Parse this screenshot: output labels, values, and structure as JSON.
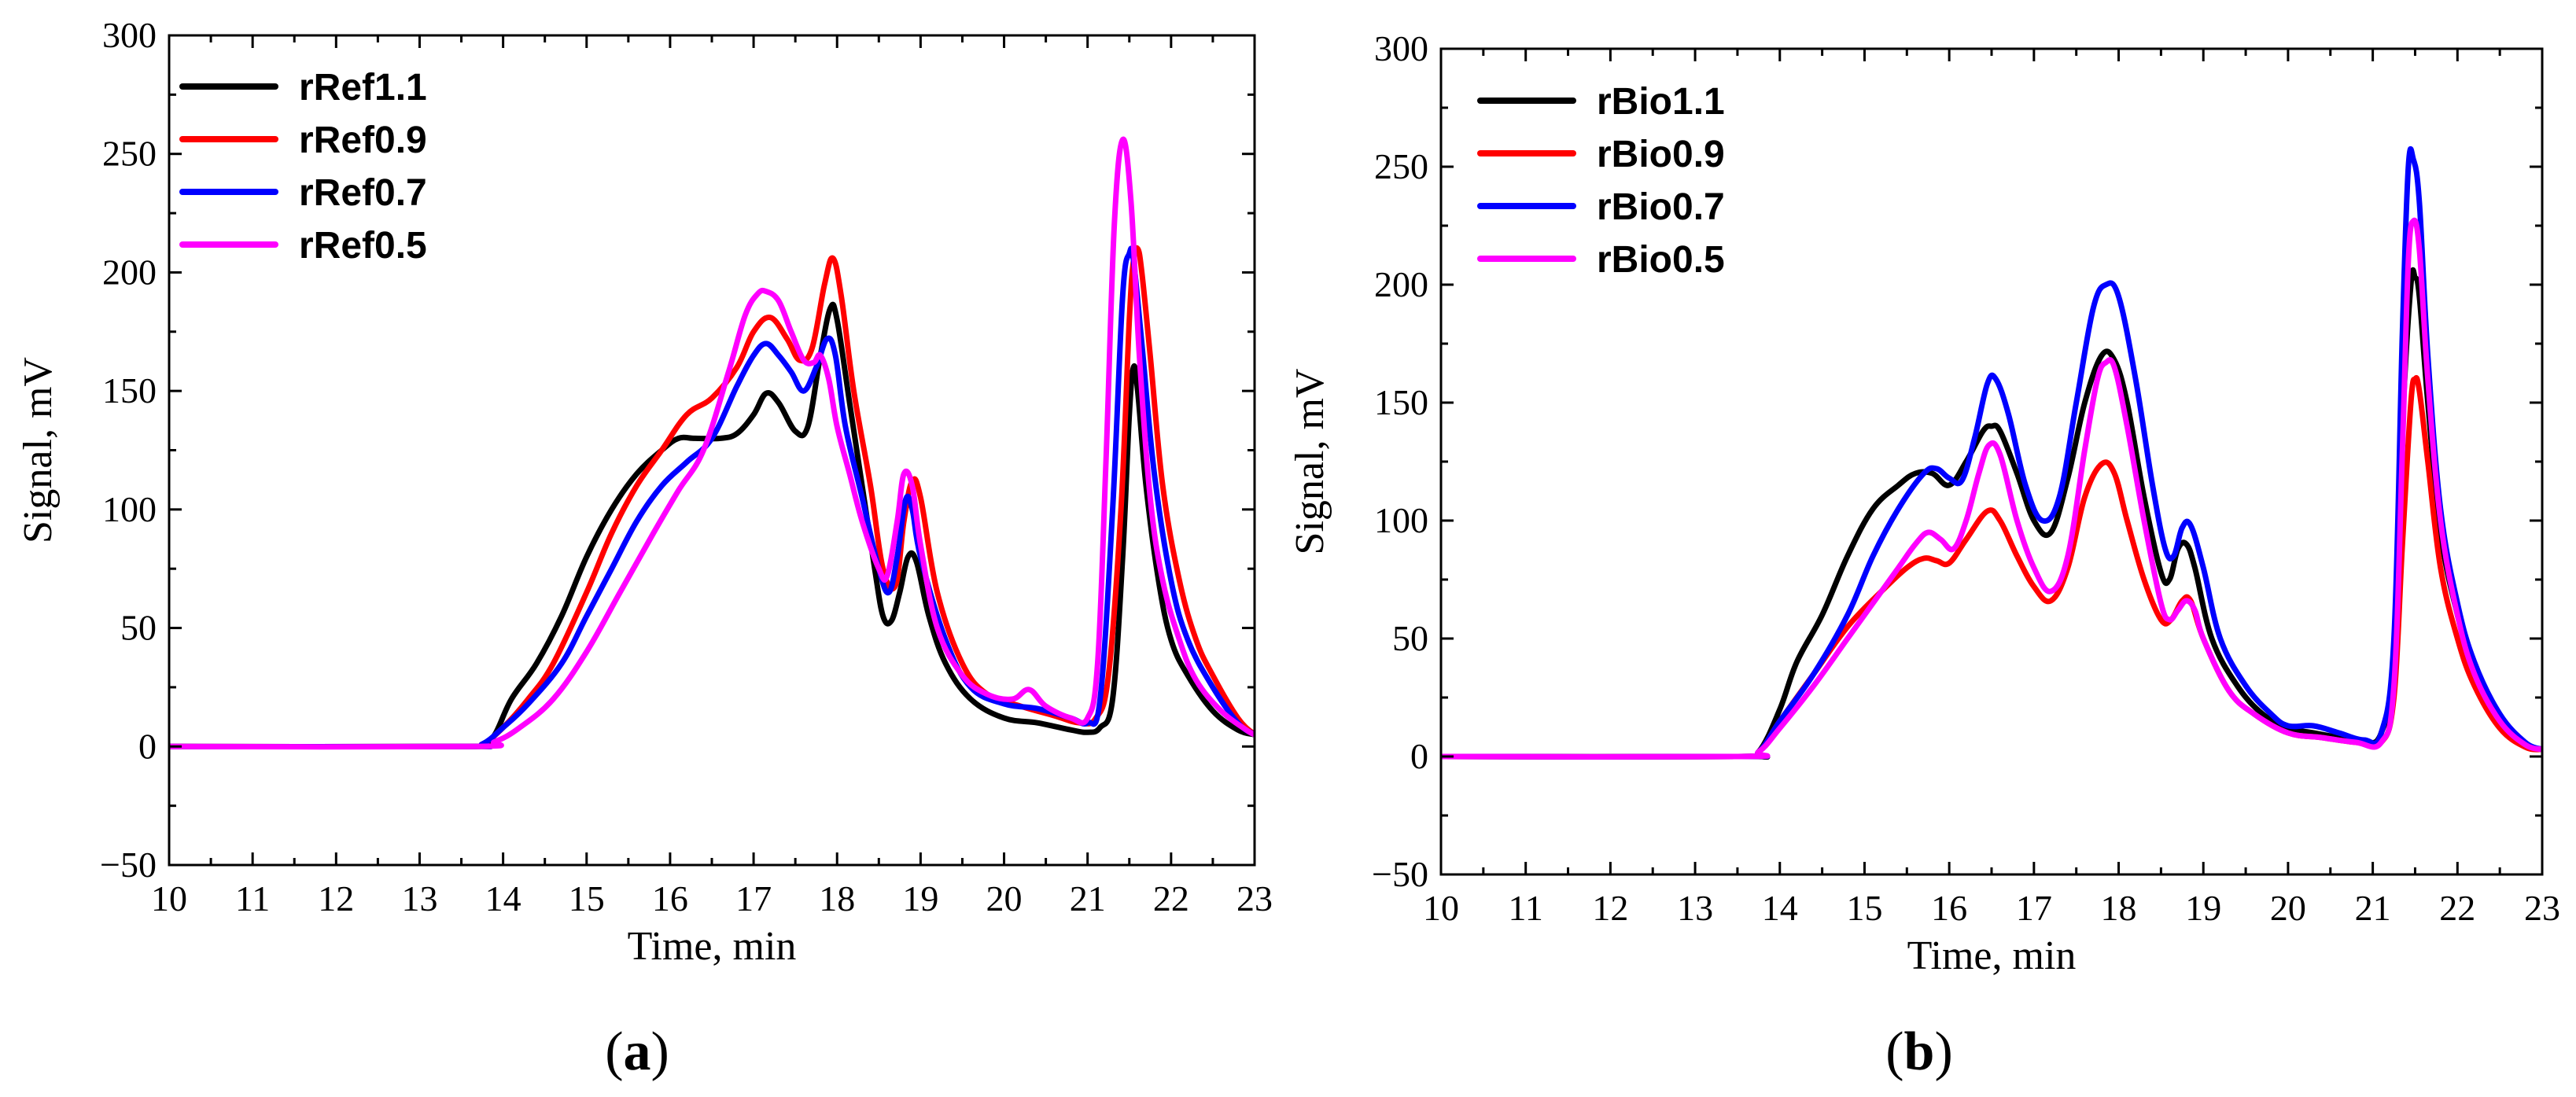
{
  "chart_data": [
    {
      "type": "line",
      "panel_label": "(a)",
      "panel_letter": "a",
      "xlabel": "Time, min",
      "ylabel": "Signal, mV",
      "xlim": [
        10,
        23
      ],
      "ylim": [
        -50,
        300
      ],
      "xticks": [
        10,
        11,
        12,
        13,
        14,
        15,
        16,
        17,
        18,
        19,
        20,
        21,
        22,
        23
      ],
      "yticks": [
        -50,
        0,
        50,
        100,
        150,
        200,
        250,
        300
      ],
      "ytick_labels": [
        "−50",
        "0",
        "50",
        "100",
        "150",
        "200",
        "250",
        "300"
      ],
      "legend_position": "top-left",
      "series": [
        {
          "name": "rRef1.1",
          "color": "#000000",
          "x": [
            10,
            13.5,
            13.75,
            13.9,
            14.1,
            14.4,
            14.7,
            15.0,
            15.3,
            15.6,
            15.9,
            16.1,
            16.3,
            16.6,
            16.8,
            17.0,
            17.15,
            17.3,
            17.5,
            17.65,
            17.8,
            17.92,
            18.0,
            18.15,
            18.3,
            18.45,
            18.55,
            18.65,
            18.75,
            18.85,
            18.95,
            19.1,
            19.3,
            19.6,
            20.0,
            20.4,
            20.8,
            21.0,
            21.15,
            21.3,
            21.42,
            21.5,
            21.55,
            21.6,
            21.7,
            21.85,
            22.0,
            22.2,
            22.5,
            22.8,
            23.0
          ],
          "y": [
            0,
            0,
            1,
            5,
            20,
            35,
            55,
            80,
            100,
            115,
            125,
            130,
            130,
            130,
            132,
            140,
            149,
            145,
            133,
            135,
            165,
            185,
            180,
            145,
            110,
            75,
            55,
            53,
            65,
            80,
            78,
            55,
            35,
            20,
            12,
            10,
            7,
            6,
            8,
            20,
            80,
            140,
            160,
            150,
            110,
            70,
            45,
            30,
            15,
            7,
            5
          ]
        },
        {
          "name": "rRef0.9",
          "color": "#ff0000",
          "x": [
            10,
            13.5,
            13.75,
            14.0,
            14.3,
            14.6,
            15.0,
            15.3,
            15.6,
            15.9,
            16.2,
            16.5,
            16.8,
            17.0,
            17.2,
            17.4,
            17.55,
            17.7,
            17.85,
            17.95,
            18.05,
            18.2,
            18.4,
            18.55,
            18.7,
            18.8,
            18.9,
            19.0,
            19.2,
            19.5,
            19.8,
            20.2,
            20.6,
            20.9,
            21.1,
            21.25,
            21.4,
            21.5,
            21.55,
            21.6,
            21.65,
            21.75,
            21.9,
            22.1,
            22.3,
            22.5,
            22.8,
            23.0
          ],
          "y": [
            0,
            0,
            1,
            8,
            20,
            35,
            65,
            90,
            110,
            125,
            140,
            147,
            160,
            175,
            181,
            172,
            163,
            168,
            195,
            206,
            190,
            150,
            110,
            75,
            68,
            95,
            112,
            105,
            65,
            35,
            22,
            17,
            13,
            10,
            12,
            30,
            100,
            180,
            205,
            210,
            200,
            165,
            110,
            70,
            45,
            30,
            12,
            5
          ]
        },
        {
          "name": "rRef0.7",
          "color": "#0000ff",
          "x": [
            10,
            13.5,
            13.75,
            14.0,
            14.3,
            14.7,
            15.0,
            15.3,
            15.6,
            15.9,
            16.2,
            16.5,
            16.8,
            17.0,
            17.15,
            17.3,
            17.45,
            17.6,
            17.75,
            17.88,
            17.98,
            18.1,
            18.3,
            18.5,
            18.62,
            18.72,
            18.82,
            18.9,
            19.0,
            19.3,
            19.6,
            20.0,
            20.4,
            20.8,
            21.0,
            21.15,
            21.3,
            21.42,
            21.5,
            21.55,
            21.65,
            21.8,
            22.0,
            22.2,
            22.5,
            22.8,
            23.0
          ],
          "y": [
            0,
            0,
            1,
            8,
            18,
            35,
            55,
            75,
            95,
            110,
            120,
            130,
            152,
            165,
            170,
            165,
            158,
            150,
            160,
            172,
            165,
            135,
            105,
            75,
            65,
            80,
            104,
            100,
            80,
            45,
            25,
            18,
            16,
            12,
            10,
            20,
            100,
            190,
            208,
            205,
            170,
            115,
            70,
            45,
            25,
            10,
            5
          ]
        },
        {
          "name": "rRef0.5",
          "color": "#ff00ff",
          "x": [
            10,
            13.6,
            13.9,
            14.2,
            14.6,
            15.0,
            15.4,
            15.8,
            16.1,
            16.4,
            16.7,
            16.9,
            17.05,
            17.15,
            17.3,
            17.45,
            17.6,
            17.72,
            17.8,
            17.9,
            18.0,
            18.15,
            18.3,
            18.5,
            18.6,
            18.72,
            18.8,
            18.9,
            19.0,
            19.2,
            19.5,
            19.8,
            20.1,
            20.3,
            20.5,
            20.8,
            21.0,
            21.12,
            21.22,
            21.32,
            21.42,
            21.52,
            21.62,
            21.75,
            21.9,
            22.1,
            22.3,
            22.6,
            22.9,
            23.0
          ],
          "y": [
            0,
            0,
            2,
            8,
            20,
            40,
            65,
            90,
            108,
            125,
            158,
            182,
            191,
            192,
            188,
            175,
            163,
            162,
            165,
            155,
            135,
            115,
            95,
            75,
            72,
            95,
            115,
            110,
            85,
            50,
            30,
            22,
            20,
            24,
            17,
            12,
            12,
            35,
            120,
            220,
            256,
            230,
            165,
            105,
            70,
            45,
            28,
            15,
            7,
            5
          ]
        }
      ]
    },
    {
      "type": "line",
      "panel_label": "(b)",
      "panel_letter": "b",
      "xlabel": "Time, min",
      "ylabel": "Signal, mV",
      "xlim": [
        10,
        23
      ],
      "ylim": [
        -50,
        300
      ],
      "xticks": [
        10,
        11,
        12,
        13,
        14,
        15,
        16,
        17,
        18,
        19,
        20,
        21,
        22,
        23
      ],
      "yticks": [
        -50,
        0,
        50,
        100,
        150,
        200,
        250,
        300
      ],
      "ytick_labels": [
        "−50",
        "0",
        "50",
        "100",
        "150",
        "200",
        "250",
        "300"
      ],
      "legend_position": "top-left",
      "series": [
        {
          "name": "rBio1.1",
          "color": "#000000",
          "x": [
            10,
            13.5,
            13.75,
            14.0,
            14.2,
            14.5,
            14.8,
            15.1,
            15.4,
            15.6,
            15.8,
            16.0,
            16.2,
            16.4,
            16.5,
            16.6,
            16.8,
            17.0,
            17.2,
            17.4,
            17.6,
            17.8,
            17.95,
            18.1,
            18.3,
            18.5,
            18.6,
            18.7,
            18.8,
            18.9,
            19.1,
            19.4,
            19.7,
            20.0,
            20.3,
            20.6,
            20.9,
            21.1,
            21.25,
            21.35,
            21.45,
            21.5,
            21.55,
            21.65,
            21.8,
            22.0,
            22.2,
            22.5,
            22.8,
            23.0
          ],
          "y": [
            0,
            0,
            2,
            20,
            40,
            60,
            85,
            105,
            115,
            120,
            120,
            115,
            125,
            138,
            140,
            138,
            120,
            100,
            95,
            118,
            150,
            170,
            168,
            150,
            110,
            78,
            75,
            88,
            90,
            80,
            50,
            30,
            18,
            12,
            10,
            8,
            6,
            10,
            40,
            140,
            200,
            203,
            195,
            150,
            95,
            60,
            35,
            15,
            5,
            3
          ]
        },
        {
          "name": "rBio0.9",
          "color": "#ff0000",
          "x": [
            10,
            13.5,
            13.75,
            14.0,
            14.4,
            14.8,
            15.2,
            15.5,
            15.7,
            15.85,
            16.0,
            16.2,
            16.45,
            16.6,
            16.8,
            17.0,
            17.2,
            17.4,
            17.6,
            17.8,
            17.95,
            18.1,
            18.3,
            18.5,
            18.62,
            18.75,
            18.85,
            19.0,
            19.3,
            19.6,
            20.0,
            20.4,
            20.8,
            21.1,
            21.25,
            21.35,
            21.45,
            21.5,
            21.55,
            21.65,
            21.8,
            22.0,
            22.2,
            22.5,
            22.8,
            23.0
          ],
          "y": [
            0,
            0,
            2,
            15,
            35,
            55,
            70,
            80,
            84,
            83,
            82,
            92,
            104,
            100,
            85,
            72,
            66,
            80,
            110,
            124,
            120,
            100,
            75,
            58,
            58,
            66,
            66,
            50,
            28,
            18,
            10,
            8,
            6,
            6,
            25,
            90,
            150,
            160,
            155,
            125,
            80,
            50,
            30,
            12,
            4,
            3
          ]
        },
        {
          "name": "rBio0.7",
          "color": "#0000ff",
          "x": [
            10,
            13.5,
            13.75,
            14.0,
            14.4,
            14.8,
            15.1,
            15.4,
            15.7,
            15.85,
            16.0,
            16.15,
            16.3,
            16.45,
            16.55,
            16.7,
            16.9,
            17.1,
            17.3,
            17.5,
            17.7,
            17.85,
            18.0,
            18.2,
            18.4,
            18.55,
            18.65,
            18.75,
            18.85,
            19.0,
            19.2,
            19.5,
            19.8,
            20.0,
            20.3,
            20.6,
            20.9,
            21.1,
            21.25,
            21.35,
            21.42,
            21.48,
            21.55,
            21.65,
            21.8,
            22.0,
            22.2,
            22.5,
            22.8,
            23.0
          ],
          "y": [
            0,
            0,
            2,
            15,
            35,
            60,
            85,
            105,
            120,
            122,
            118,
            117,
            135,
            158,
            160,
            145,
            115,
            100,
            110,
            150,
            190,
            200,
            195,
            160,
            115,
            88,
            85,
            97,
            98,
            80,
            50,
            30,
            18,
            13,
            13,
            10,
            7,
            10,
            50,
            180,
            250,
            253,
            235,
            170,
            105,
            65,
            40,
            18,
            6,
            3
          ]
        },
        {
          "name": "rBio0.5",
          "color": "#ff00ff",
          "x": [
            10,
            13.5,
            13.75,
            14.0,
            14.4,
            14.8,
            15.1,
            15.4,
            15.6,
            15.75,
            15.9,
            16.05,
            16.2,
            16.35,
            16.47,
            16.6,
            16.8,
            17.0,
            17.2,
            17.4,
            17.6,
            17.75,
            17.85,
            17.95,
            18.1,
            18.3,
            18.5,
            18.6,
            18.7,
            18.8,
            18.9,
            19.0,
            19.3,
            19.6,
            20.0,
            20.4,
            20.8,
            21.1,
            21.25,
            21.35,
            21.42,
            21.48,
            21.55,
            21.65,
            21.8,
            22.0,
            22.2,
            22.5,
            22.8,
            23.0
          ],
          "y": [
            0,
            0,
            2,
            12,
            30,
            50,
            65,
            80,
            90,
            95,
            92,
            88,
            100,
            120,
            132,
            128,
            100,
            80,
            70,
            85,
            130,
            160,
            167,
            165,
            140,
            100,
            65,
            58,
            62,
            66,
            62,
            50,
            28,
            18,
            10,
            8,
            6,
            6,
            30,
            130,
            210,
            227,
            215,
            160,
            100,
            60,
            35,
            15,
            5,
            3
          ]
        }
      ]
    }
  ]
}
